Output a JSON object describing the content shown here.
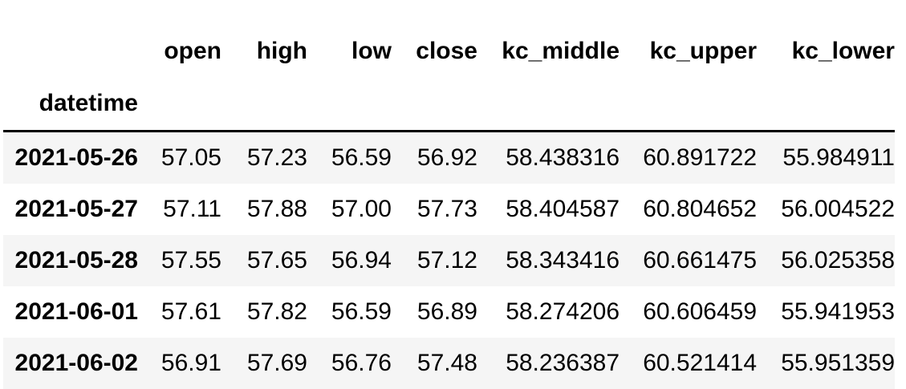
{
  "table": {
    "index_name": "datetime",
    "columns": [
      "open",
      "high",
      "low",
      "close",
      "kc_middle",
      "kc_upper",
      "kc_lower"
    ],
    "rows": [
      {
        "index": "2021-05-26",
        "values": [
          "57.05",
          "57.23",
          "56.59",
          "56.92",
          "58.438316",
          "60.891722",
          "55.984911"
        ]
      },
      {
        "index": "2021-05-27",
        "values": [
          "57.11",
          "57.88",
          "57.00",
          "57.73",
          "58.404587",
          "60.804652",
          "56.004522"
        ]
      },
      {
        "index": "2021-05-28",
        "values": [
          "57.55",
          "57.65",
          "56.94",
          "57.12",
          "58.343416",
          "60.661475",
          "56.025358"
        ]
      },
      {
        "index": "2021-06-01",
        "values": [
          "57.61",
          "57.82",
          "56.59",
          "56.89",
          "58.274206",
          "60.606459",
          "55.941953"
        ]
      },
      {
        "index": "2021-06-02",
        "values": [
          "56.91",
          "57.69",
          "56.76",
          "57.48",
          "58.236387",
          "60.521414",
          "55.951359"
        ]
      }
    ]
  }
}
